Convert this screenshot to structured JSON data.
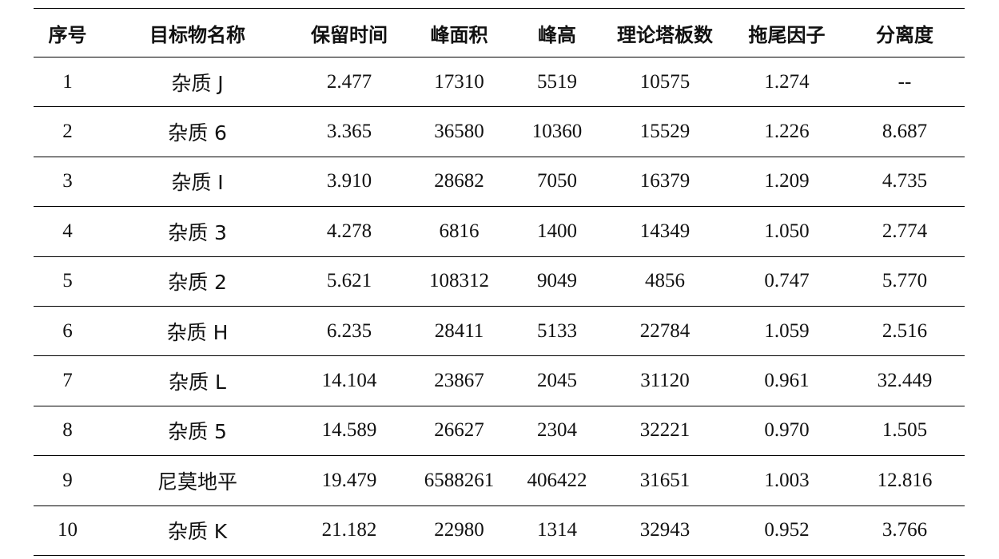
{
  "table": {
    "headers": [
      "序号",
      "目标物名称",
      "保留时间",
      "峰面积",
      "峰高",
      "理论塔板数",
      "拖尾因子",
      "分离度"
    ],
    "rows": [
      [
        "1",
        "杂质 J",
        "2.477",
        "17310",
        "5519",
        "10575",
        "1.274",
        "--"
      ],
      [
        "2",
        "杂质 6",
        "3.365",
        "36580",
        "10360",
        "15529",
        "1.226",
        "8.687"
      ],
      [
        "3",
        "杂质 I",
        "3.910",
        "28682",
        "7050",
        "16379",
        "1.209",
        "4.735"
      ],
      [
        "4",
        "杂质 3",
        "4.278",
        "6816",
        "1400",
        "14349",
        "1.050",
        "2.774"
      ],
      [
        "5",
        "杂质 2",
        "5.621",
        "108312",
        "9049",
        "4856",
        "0.747",
        "5.770"
      ],
      [
        "6",
        "杂质 H",
        "6.235",
        "28411",
        "5133",
        "22784",
        "1.059",
        "2.516"
      ],
      [
        "7",
        "杂质 L",
        "14.104",
        "23867",
        "2045",
        "31120",
        "0.961",
        "32.449"
      ],
      [
        "8",
        "杂质 5",
        "14.589",
        "26627",
        "2304",
        "32221",
        "0.970",
        "1.505"
      ],
      [
        "9",
        "尼莫地平",
        "19.479",
        "6588261",
        "406422",
        "31651",
        "1.003",
        "12.816"
      ],
      [
        "10",
        "杂质 K",
        "21.182",
        "22980",
        "1314",
        "32943",
        "0.952",
        "3.766"
      ]
    ]
  }
}
